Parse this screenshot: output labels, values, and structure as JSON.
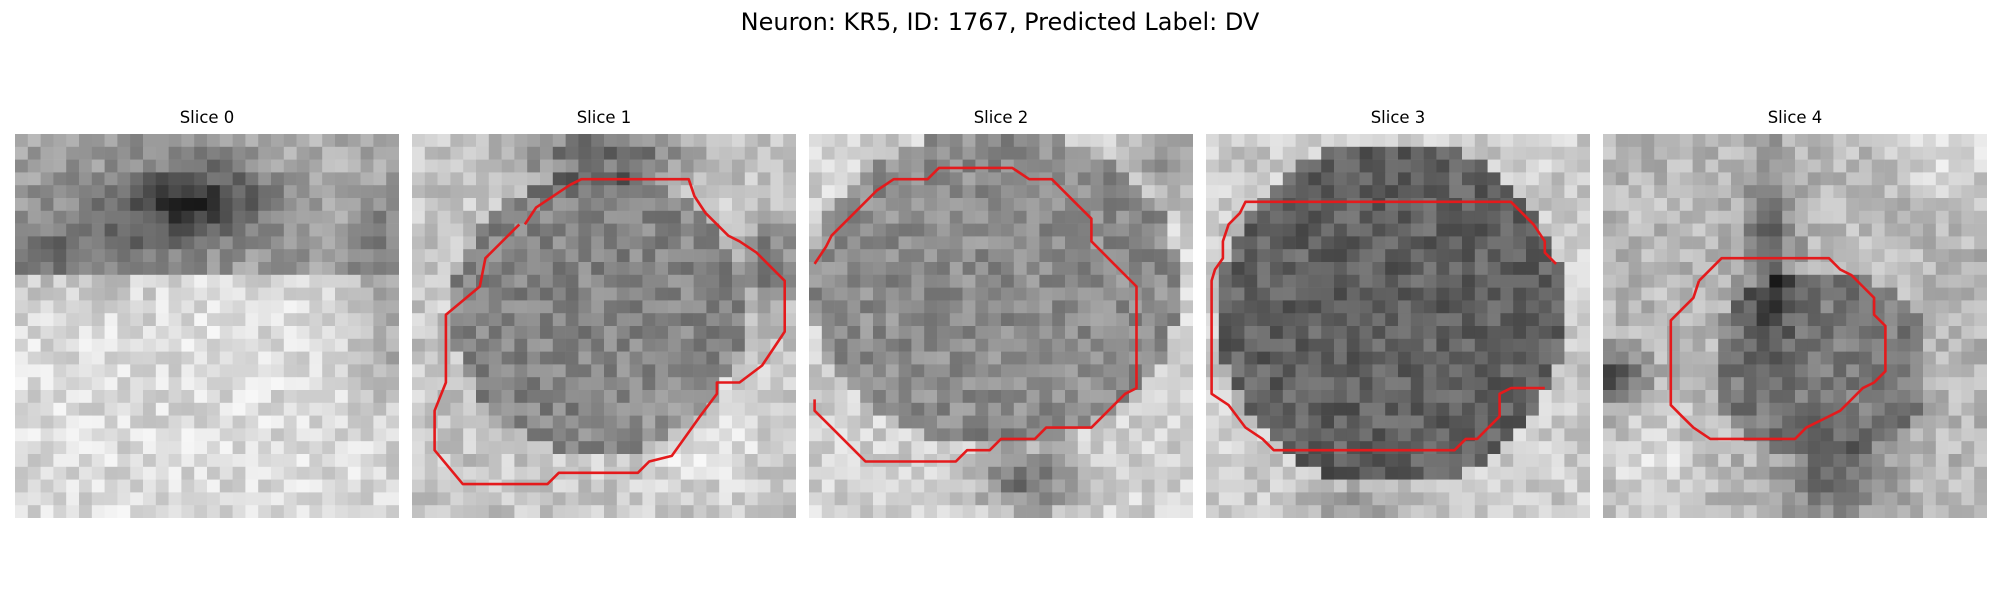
{
  "figure": {
    "title": "Neuron: KR5, ID: 1767, Predicted Label: DV",
    "contour_color": "#e41a1c"
  },
  "panels": [
    {
      "title": "Slice 0",
      "has_contour": false
    },
    {
      "title": "Slice 1",
      "has_contour": true
    },
    {
      "title": "Slice 2",
      "has_contour": true
    },
    {
      "title": "Slice 3",
      "has_contour": true
    },
    {
      "title": "Slice 4",
      "has_contour": true
    }
  ]
}
